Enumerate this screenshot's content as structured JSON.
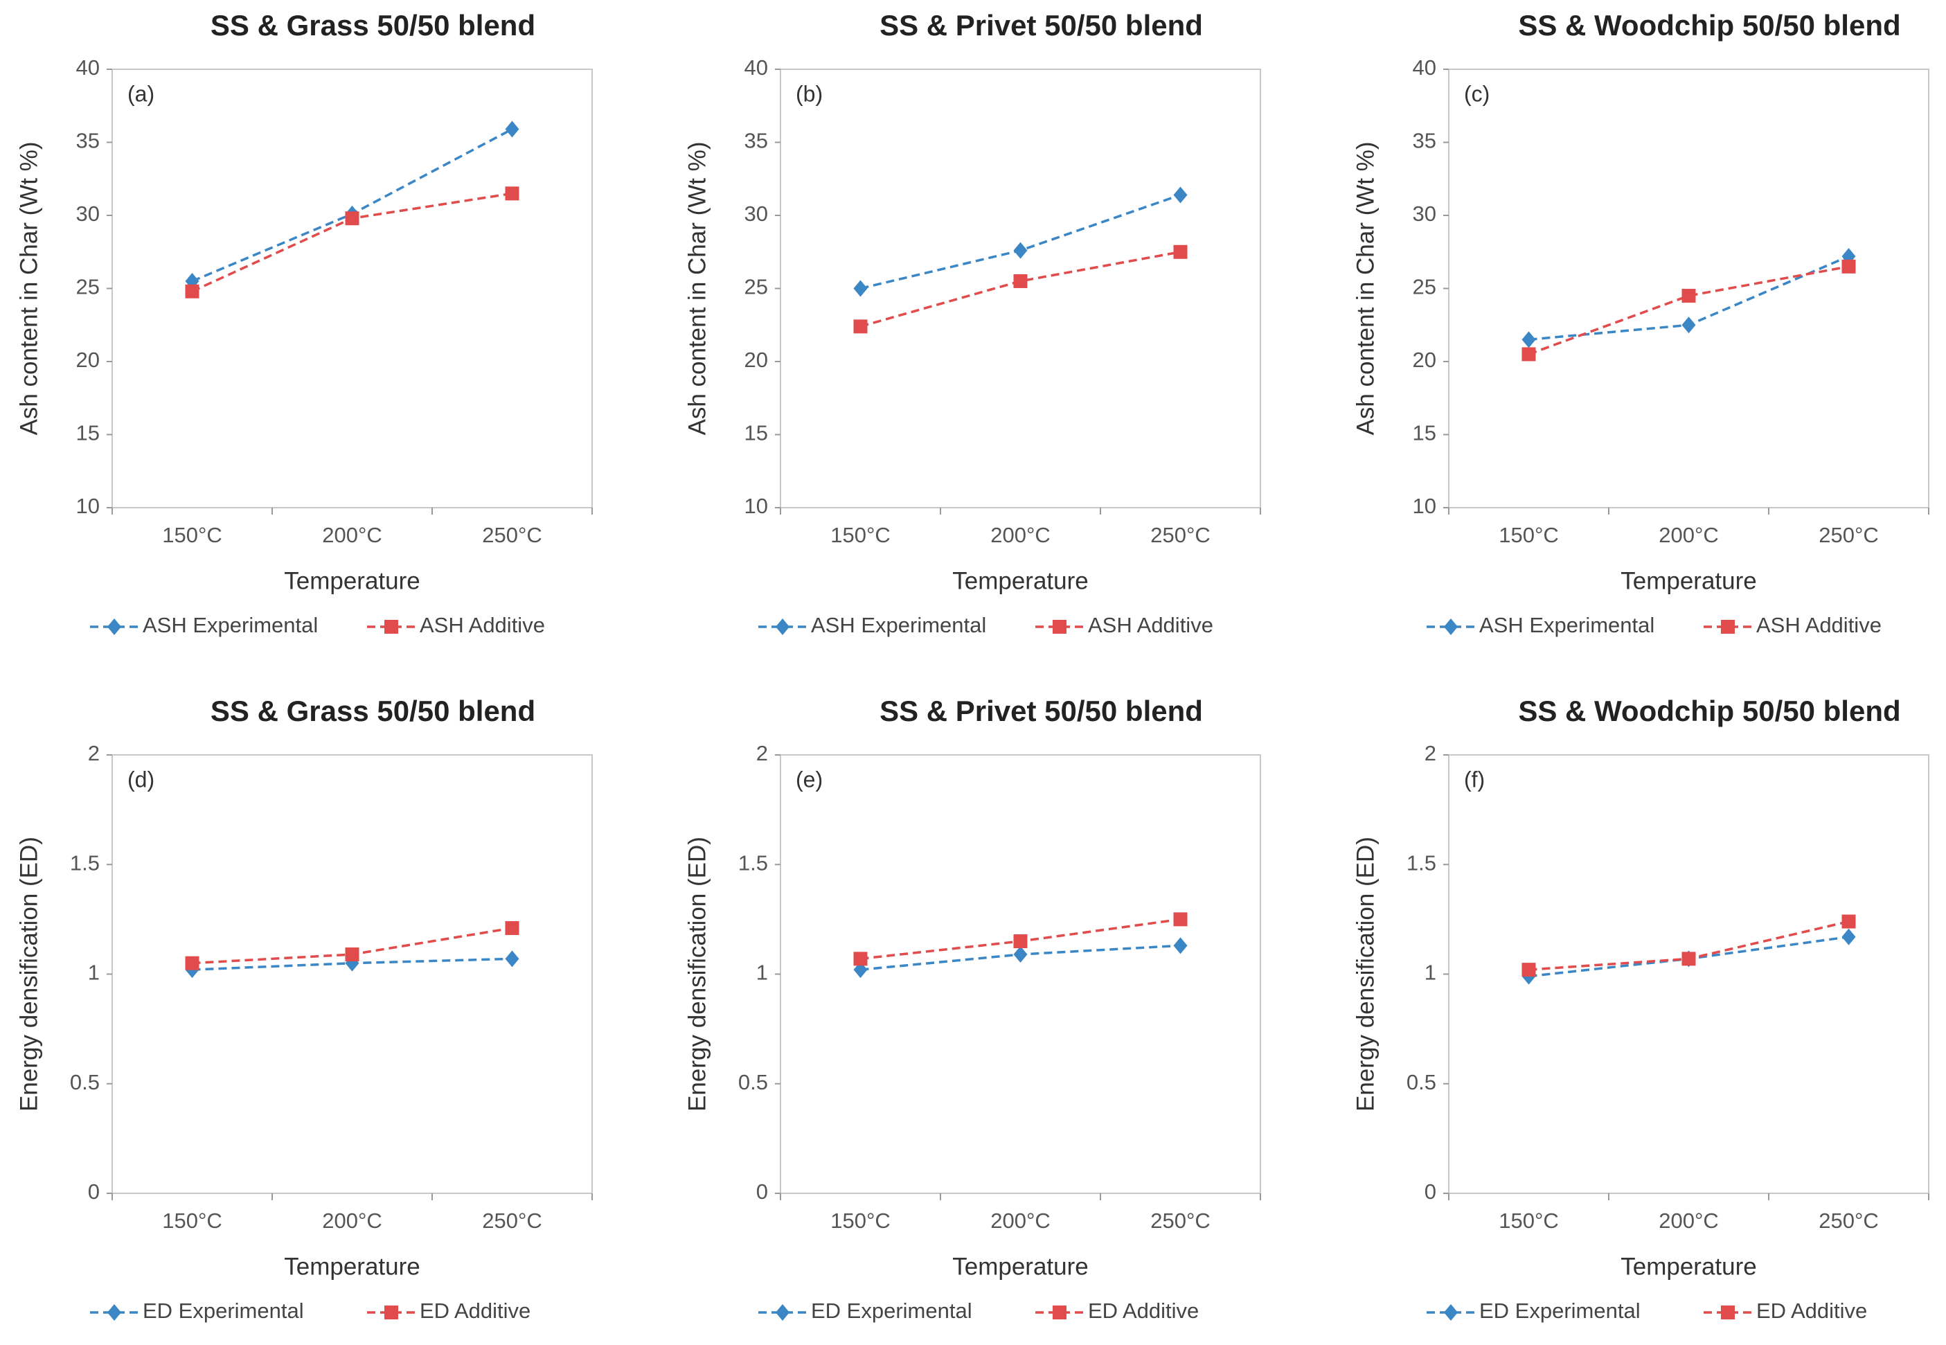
{
  "chart_data": [
    {
      "type": "line",
      "title": "SS & Grass 50/50 blend",
      "panel_label": "(a)",
      "x_label": "Temperature",
      "y_label": "Ash content in Char (Wt %)",
      "categories": [
        "150°C",
        "200°C",
        "250°C"
      ],
      "series": [
        {
          "name": "ASH Experimental",
          "color": "#3b87c6",
          "marker": "diamond",
          "values": [
            25.5,
            30.1,
            35.9
          ]
        },
        {
          "name": "ASH Additive",
          "color": "#e14b4b",
          "marker": "square",
          "values": [
            24.8,
            29.8,
            31.5
          ]
        }
      ],
      "ylim": [
        10,
        40
      ],
      "yticks": [
        10,
        15,
        20,
        25,
        30,
        35,
        40
      ]
    },
    {
      "type": "line",
      "title": "SS & Privet 50/50 blend",
      "panel_label": "(b)",
      "x_label": "Temperature",
      "y_label": "Ash content in Char (Wt %)",
      "categories": [
        "150°C",
        "200°C",
        "250°C"
      ],
      "series": [
        {
          "name": "ASH Experimental",
          "color": "#3b87c6",
          "marker": "diamond",
          "values": [
            25.0,
            27.6,
            31.4
          ]
        },
        {
          "name": "ASH Additive",
          "color": "#e14b4b",
          "marker": "square",
          "values": [
            22.4,
            25.5,
            27.5
          ]
        }
      ],
      "ylim": [
        10,
        40
      ],
      "yticks": [
        10,
        15,
        20,
        25,
        30,
        35,
        40
      ]
    },
    {
      "type": "line",
      "title": "SS & Woodchip 50/50 blend",
      "panel_label": "(c)",
      "x_label": "Temperature",
      "y_label": "Ash content in Char (Wt %)",
      "categories": [
        "150°C",
        "200°C",
        "250°C"
      ],
      "series": [
        {
          "name": "ASH Experimental",
          "color": "#3b87c6",
          "marker": "diamond",
          "values": [
            21.5,
            22.5,
            27.2
          ]
        },
        {
          "name": "ASH Additive",
          "color": "#e14b4b",
          "marker": "square",
          "values": [
            20.5,
            24.5,
            26.5
          ]
        }
      ],
      "ylim": [
        10,
        40
      ],
      "yticks": [
        10,
        15,
        20,
        25,
        30,
        35,
        40
      ]
    },
    {
      "type": "line",
      "title": "SS & Grass 50/50 blend",
      "panel_label": "(d)",
      "x_label": "Temperature",
      "y_label": "Energy densification (ED)",
      "categories": [
        "150°C",
        "200°C",
        "250°C"
      ],
      "series": [
        {
          "name": "ED Experimental",
          "color": "#3b87c6",
          "marker": "diamond",
          "values": [
            1.02,
            1.05,
            1.07
          ]
        },
        {
          "name": "ED Additive",
          "color": "#e14b4b",
          "marker": "square",
          "values": [
            1.05,
            1.09,
            1.21
          ]
        }
      ],
      "ylim": [
        0,
        2
      ],
      "yticks": [
        0,
        0.5,
        1,
        1.5,
        2
      ]
    },
    {
      "type": "line",
      "title": "SS & Privet 50/50 blend",
      "panel_label": "(e)",
      "x_label": "Temperature",
      "y_label": "Energy densification (ED)",
      "categories": [
        "150°C",
        "200°C",
        "250°C"
      ],
      "series": [
        {
          "name": "ED Experimental",
          "color": "#3b87c6",
          "marker": "diamond",
          "values": [
            1.02,
            1.09,
            1.13
          ]
        },
        {
          "name": "ED Additive",
          "color": "#e14b4b",
          "marker": "square",
          "values": [
            1.07,
            1.15,
            1.25
          ]
        }
      ],
      "ylim": [
        0,
        2
      ],
      "yticks": [
        0,
        0.5,
        1,
        1.5,
        2
      ]
    },
    {
      "type": "line",
      "title": "SS & Woodchip 50/50 blend",
      "panel_label": "(f)",
      "x_label": "Temperature",
      "y_label": "Energy densification (ED)",
      "categories": [
        "150°C",
        "200°C",
        "250°C"
      ],
      "series": [
        {
          "name": "ED Experimental",
          "color": "#3b87c6",
          "marker": "diamond",
          "values": [
            0.99,
            1.07,
            1.17
          ]
        },
        {
          "name": "ED Additive",
          "color": "#e14b4b",
          "marker": "square",
          "values": [
            1.02,
            1.07,
            1.24
          ]
        }
      ],
      "ylim": [
        0,
        2
      ],
      "yticks": [
        0,
        0.5,
        1,
        1.5,
        2
      ]
    }
  ]
}
